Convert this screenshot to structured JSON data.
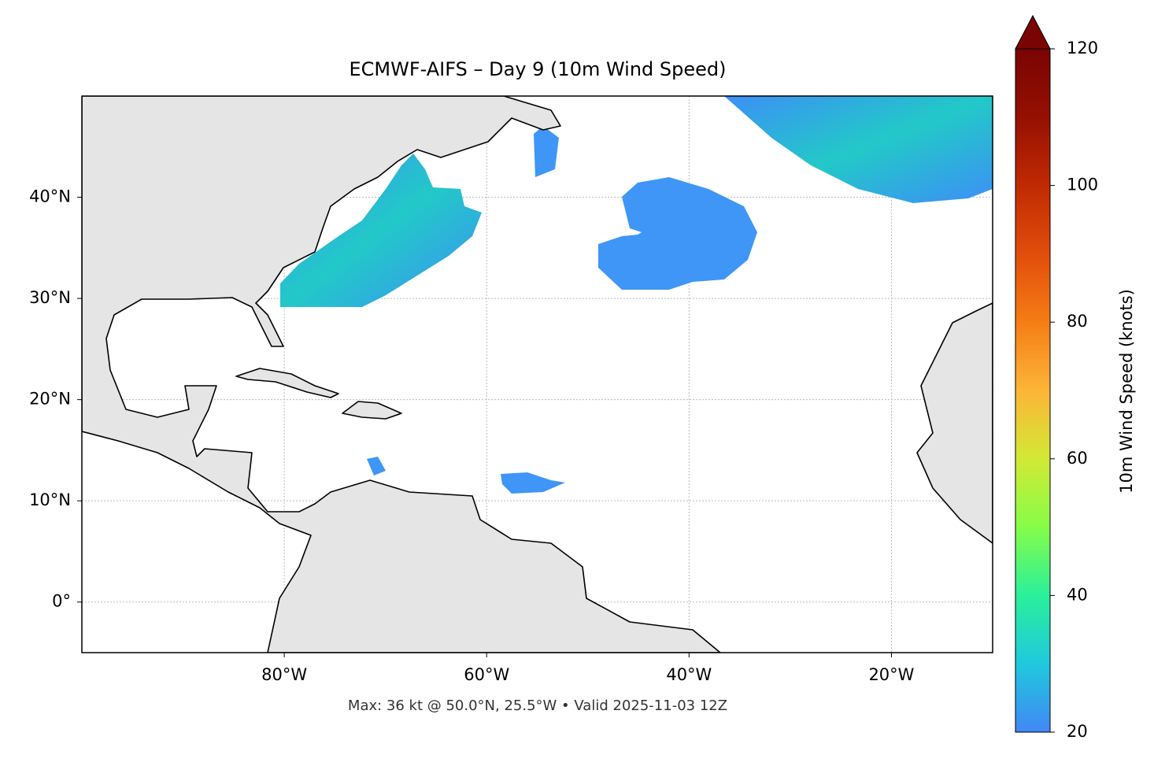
{
  "chart_data": {
    "type": "map",
    "title": "ECMWF-AIFS – Day 9 (10m Wind Speed)",
    "note": "Max: 36 kt @ 50.0°N, 25.5°W • Valid 2025-11-03 12Z",
    "xlim": [
      -100,
      -10
    ],
    "ylim": [
      -5,
      50
    ],
    "xticks": [
      {
        "value": -80,
        "label": "80°W"
      },
      {
        "value": -60,
        "label": "60°W"
      },
      {
        "value": -40,
        "label": "40°W"
      },
      {
        "value": -20,
        "label": "20°W"
      }
    ],
    "yticks": [
      {
        "value": 0,
        "label": "0°"
      },
      {
        "value": 10,
        "label": "10°N"
      },
      {
        "value": 20,
        "label": "20°N"
      },
      {
        "value": 30,
        "label": "30°N"
      },
      {
        "value": 40,
        "label": "40°N"
      }
    ],
    "grid": true,
    "colorbar": {
      "label": "10m Wind Speed (knots)",
      "clim": [
        20,
        120
      ],
      "ticks": [
        20,
        40,
        60,
        80,
        100,
        120
      ]
    }
  }
}
